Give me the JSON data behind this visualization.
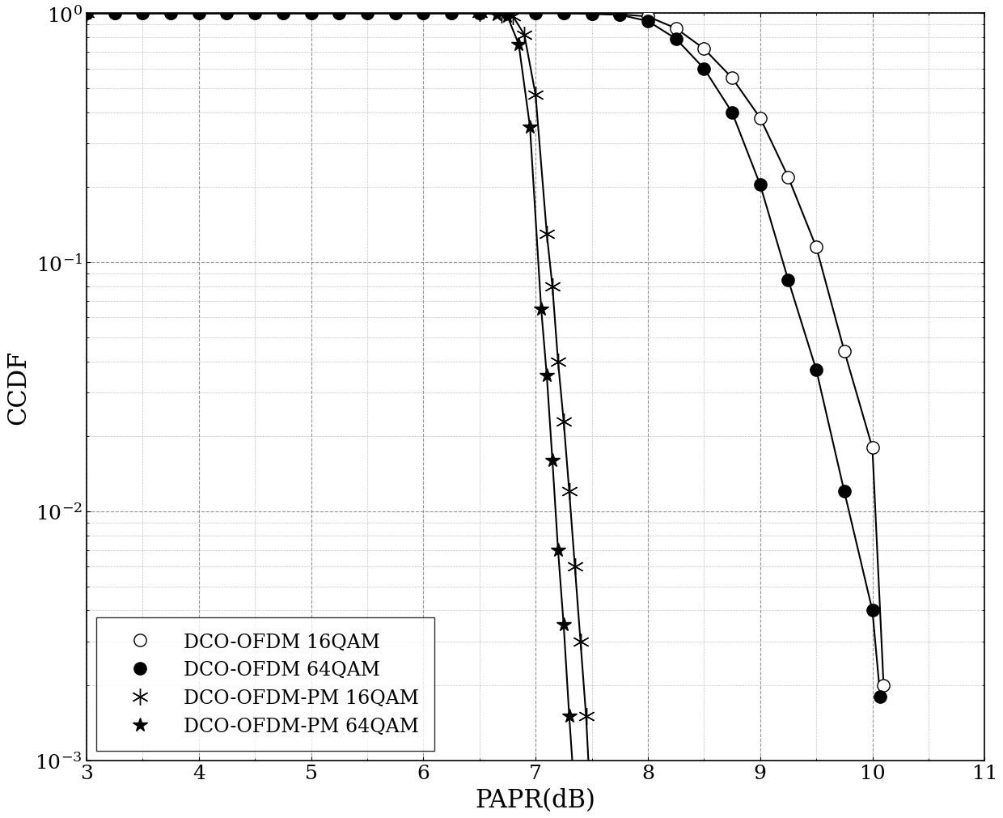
{
  "xlabel": "PAPR(dB)",
  "ylabel": "CCDF",
  "xlim": [
    3,
    11
  ],
  "xticks": [
    3,
    4,
    5,
    6,
    7,
    8,
    9,
    10,
    11
  ],
  "legend_loc": "lower left",
  "legend_fontsize": 17,
  "axis_label_fontsize": 22,
  "tick_fontsize": 18,
  "figsize": [
    12.4,
    10.12
  ],
  "dpi": 100,
  "series": [
    {
      "label": "DCO-OFDM 16QAM",
      "x": [
        3.0,
        3.25,
        3.5,
        3.75,
        4.0,
        4.25,
        4.5,
        4.75,
        5.0,
        5.25,
        5.5,
        5.75,
        6.0,
        6.25,
        6.5,
        6.75,
        7.0,
        7.25,
        7.5,
        7.75,
        8.0,
        8.25,
        8.5,
        8.75,
        9.0,
        9.25,
        9.5,
        9.75,
        10.0,
        10.1
      ],
      "y": [
        1.0,
        1.0,
        1.0,
        1.0,
        1.0,
        1.0,
        1.0,
        1.0,
        1.0,
        1.0,
        1.0,
        1.0,
        1.0,
        1.0,
        1.0,
        1.0,
        1.0,
        1.0,
        0.995,
        0.99,
        0.97,
        0.87,
        0.72,
        0.55,
        0.38,
        0.22,
        0.115,
        0.044,
        0.018,
        0.002
      ],
      "marker": "o",
      "mfc": "white",
      "mec": "black",
      "msize": 11
    },
    {
      "label": "DCO-OFDM 64QAM",
      "x": [
        3.0,
        3.25,
        3.5,
        3.75,
        4.0,
        4.25,
        4.5,
        4.75,
        5.0,
        5.25,
        5.5,
        5.75,
        6.0,
        6.25,
        6.5,
        6.75,
        7.0,
        7.25,
        7.5,
        7.75,
        8.0,
        8.25,
        8.5,
        8.75,
        9.0,
        9.25,
        9.5,
        9.75,
        10.0,
        10.07
      ],
      "y": [
        1.0,
        1.0,
        1.0,
        1.0,
        1.0,
        1.0,
        1.0,
        1.0,
        1.0,
        1.0,
        1.0,
        1.0,
        1.0,
        1.0,
        1.0,
        1.0,
        1.0,
        1.0,
        0.994,
        0.985,
        0.93,
        0.79,
        0.6,
        0.4,
        0.205,
        0.085,
        0.037,
        0.012,
        0.004,
        0.0018
      ],
      "marker": "o",
      "mfc": "black",
      "mec": "black",
      "msize": 11
    },
    {
      "label": "DCO-OFDM-PM 16QAM",
      "x": [
        3.0,
        6.5,
        6.7,
        6.8,
        6.9,
        7.0,
        7.1,
        7.15,
        7.2,
        7.25,
        7.3,
        7.35,
        7.4,
        7.45,
        7.5,
        7.55,
        7.6
      ],
      "y": [
        1.0,
        1.0,
        0.99,
        0.97,
        0.82,
        0.47,
        0.13,
        0.08,
        0.04,
        0.023,
        0.012,
        0.006,
        0.003,
        0.0015,
        0.00055,
        0.00028,
        0.0002
      ],
      "marker": "star6",
      "mfc": "white",
      "mec": "black",
      "msize": 15
    },
    {
      "label": "DCO-OFDM-PM 64QAM",
      "x": [
        3.0,
        6.5,
        6.65,
        6.75,
        6.85,
        6.95,
        7.05,
        7.1,
        7.15,
        7.2,
        7.25,
        7.3,
        7.35,
        7.4,
        7.45,
        7.5
      ],
      "y": [
        1.0,
        1.0,
        0.99,
        0.97,
        0.75,
        0.35,
        0.065,
        0.035,
        0.016,
        0.007,
        0.0035,
        0.0015,
        0.0007,
        0.0003,
        0.00018,
        0.00015
      ],
      "marker": "*",
      "mfc": "black",
      "mec": "black",
      "msize": 13
    }
  ]
}
